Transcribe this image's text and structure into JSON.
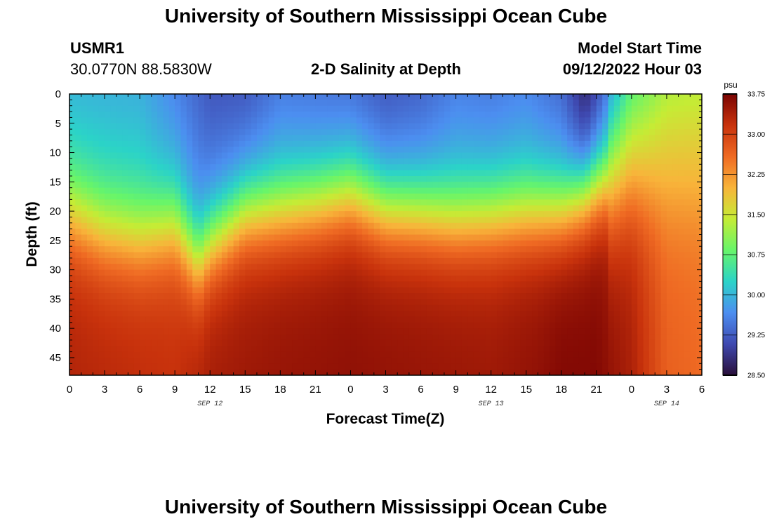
{
  "header": {
    "title": "University of Southern Mississippi Ocean Cube",
    "station": "USMR1",
    "coords": "30.0770N  88.5830W",
    "subtitle": "2-D Salinity at Depth",
    "start_label": "Model Start Time",
    "start_value": "09/12/2022 Hour 03"
  },
  "footer": {
    "title": "University of Southern Mississippi Ocean Cube"
  },
  "chart_data": {
    "type": "heatmap",
    "title": "2-D Salinity at Depth",
    "xlabel": "Forecast Time(Z)",
    "ylabel": "Depth (ft)",
    "x_tick_labels": [
      "0",
      "3",
      "6",
      "9",
      "12",
      "15",
      "18",
      "21",
      "0",
      "3",
      "6",
      "9",
      "12",
      "15",
      "18",
      "21",
      "0",
      "3",
      "6"
    ],
    "x_range_hours": [
      0,
      54
    ],
    "day_labels": [
      {
        "text": "SEP 12",
        "at_hour": 12
      },
      {
        "text": "SEP 13",
        "at_hour": 36
      },
      {
        "text": "SEP 14",
        "at_hour": 51
      }
    ],
    "y_ticks": [
      0,
      5,
      10,
      15,
      20,
      25,
      30,
      35,
      40,
      45
    ],
    "y_range": [
      0,
      48
    ],
    "colorbar": {
      "unit": "psu",
      "min": 28.5,
      "max": 33.75,
      "tick_labels": [
        "33.75",
        "33.00",
        "32.25",
        "31.50",
        "30.75",
        "30.00",
        "29.25",
        "28.50"
      ],
      "colors": [
        "#2a0f3a",
        "#3f49b0",
        "#4c8ef0",
        "#2bd3c8",
        "#67f56a",
        "#c5ec35",
        "#f8b43a",
        "#ef6a23",
        "#c8320c",
        "#7a0403"
      ]
    },
    "halocline_depth_ft": [
      [
        0,
        20
      ],
      [
        3,
        23
      ],
      [
        6,
        24
      ],
      [
        9,
        22
      ],
      [
        11,
        28
      ],
      [
        12,
        25
      ],
      [
        15,
        20
      ],
      [
        18,
        19.5
      ],
      [
        21,
        18.5
      ],
      [
        24,
        17
      ],
      [
        27,
        19.5
      ],
      [
        30,
        20
      ],
      [
        33,
        21
      ],
      [
        36,
        20.5
      ],
      [
        39,
        20
      ],
      [
        42,
        19.5
      ],
      [
        44,
        17
      ],
      [
        45,
        15.5
      ],
      [
        48,
        13
      ],
      [
        51,
        14
      ],
      [
        54,
        14
      ]
    ],
    "surface_salinity_psu": [
      [
        0,
        30.0
      ],
      [
        6,
        29.95
      ],
      [
        9,
        29.6
      ],
      [
        12,
        29.2
      ],
      [
        15,
        29.2
      ],
      [
        18,
        29.5
      ],
      [
        21,
        29.45
      ],
      [
        24,
        29.4
      ],
      [
        27,
        29.2
      ],
      [
        30,
        29.3
      ],
      [
        33,
        29.55
      ],
      [
        36,
        29.5
      ],
      [
        39,
        29.6
      ],
      [
        42,
        29.35
      ],
      [
        44,
        28.7
      ],
      [
        45,
        29.0
      ],
      [
        48,
        30.5
      ],
      [
        51,
        31.2
      ],
      [
        54,
        31.3
      ]
    ],
    "bottom_salinity_psu": [
      [
        0,
        33.35
      ],
      [
        9,
        33.2
      ],
      [
        12,
        33.45
      ],
      [
        18,
        33.55
      ],
      [
        24,
        33.6
      ],
      [
        30,
        33.55
      ],
      [
        36,
        33.5
      ],
      [
        40,
        33.6
      ],
      [
        42,
        33.7
      ],
      [
        45,
        33.7
      ],
      [
        48,
        33.4
      ],
      [
        51,
        32.7
      ],
      [
        54,
        32.6
      ]
    ]
  }
}
